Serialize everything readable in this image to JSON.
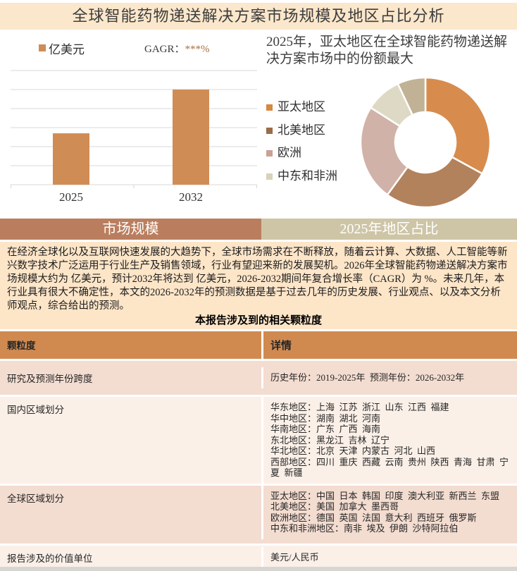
{
  "page": {
    "title": "全球智能药物递送解决方案市场规模及地区占比分析"
  },
  "bar_section": {
    "legend_label": "亿美元",
    "cagr_label": "GAGR：",
    "cagr_value": "***%",
    "section_header": "市场规模"
  },
  "donut_section": {
    "heading": "2025年，亚太地区在全球智能药物递送解决方案市场中的份额最大",
    "section_header": "2025年地区占比",
    "legend": [
      "亚太地区",
      "北美地区",
      "欧洲",
      "中东和非洲"
    ],
    "legend_marker_colors": [
      "#d6883f",
      "#9b6c48",
      "#c8a294",
      "#d8d2ba"
    ]
  },
  "description": {
    "paragraph": "在经济全球化以及互联网快速发展的大趋势下，全球市场需求在不断释放，随着云计算、大数据、人工智能等新兴数字技术广泛运用于行业生产及销售领域，行业有望迎来新的发展契机。2026年全球智能药物递送解决方案市场规模大约为 亿美元，预计2032年将达到 亿美元，2026-2032期间年复合增长率（CAGR）为 %。未来几年，本行业具有很大不确定性，本文的2026-2032年的预测数据是基于过去几年的历史发展、行业观点、以及本文分析师观点，综合给出的预测。",
    "table_title": "本报告涉及到的相关颗粒度"
  },
  "table": {
    "headers": [
      "颗粒度",
      "详情"
    ],
    "rows": [
      {
        "label": "研究及预测年份跨度",
        "detail_lines": [
          "历史年份：2019-2025年  预测年份：2026-2032年"
        ]
      },
      {
        "label": "国内区域划分",
        "detail_lines": [
          "华东地区：上海  江苏  浙江  山东  江西  福建",
          "华中地区：湖南  湖北  河南",
          "华南地区：广东  广西  海南",
          "东北地区：黑龙江  吉林  辽宁",
          "华北地区：北京  天津  内蒙古  河北  山西",
          "西部地区：四川  重庆  西藏  云南  贵州  陕西  青海  甘肃  宁夏  新疆"
        ]
      },
      {
        "label": "全球区域划分",
        "detail_lines": [
          "亚太地区：中国  日本  韩国  印度  澳大利亚  新西兰  东盟",
          "北美地区：美国  加拿大  墨西哥",
          "欧洲地区：德国  英国  法国  意大利  西班牙  俄罗斯",
          "中东和非洲地区：南非  埃及  伊朗  沙特阿拉伯"
        ]
      },
      {
        "label": "报告涉及的价值单位",
        "detail_lines": [
          "美元/人民币"
        ]
      }
    ]
  },
  "chart_data": [
    {
      "type": "bar",
      "title": "市场规模",
      "unit": "亿美元",
      "categories": [
        "2025",
        "2032"
      ],
      "values": [
        2.7,
        5
      ],
      "ylim": [
        0,
        6
      ],
      "xlabel": "",
      "ylabel": "",
      "grid": true,
      "bar_color": "#d08c55",
      "note": "y-axis tick values masked in source (values shown as *** in report)"
    },
    {
      "type": "pie",
      "donut": true,
      "title": "2025年地区占比",
      "labels": [
        "亚太地区",
        "北美地区",
        "欧洲",
        "中东和非洲",
        ""
      ],
      "values": [
        33,
        27,
        24,
        9,
        7
      ],
      "colors": [
        "#d78c4d",
        "#b2825c",
        "#d1b2a8",
        "#ded9c4",
        "#c1b296"
      ],
      "legend_position": "left",
      "note": "fifth small slice has no legend entry in source"
    }
  ]
}
